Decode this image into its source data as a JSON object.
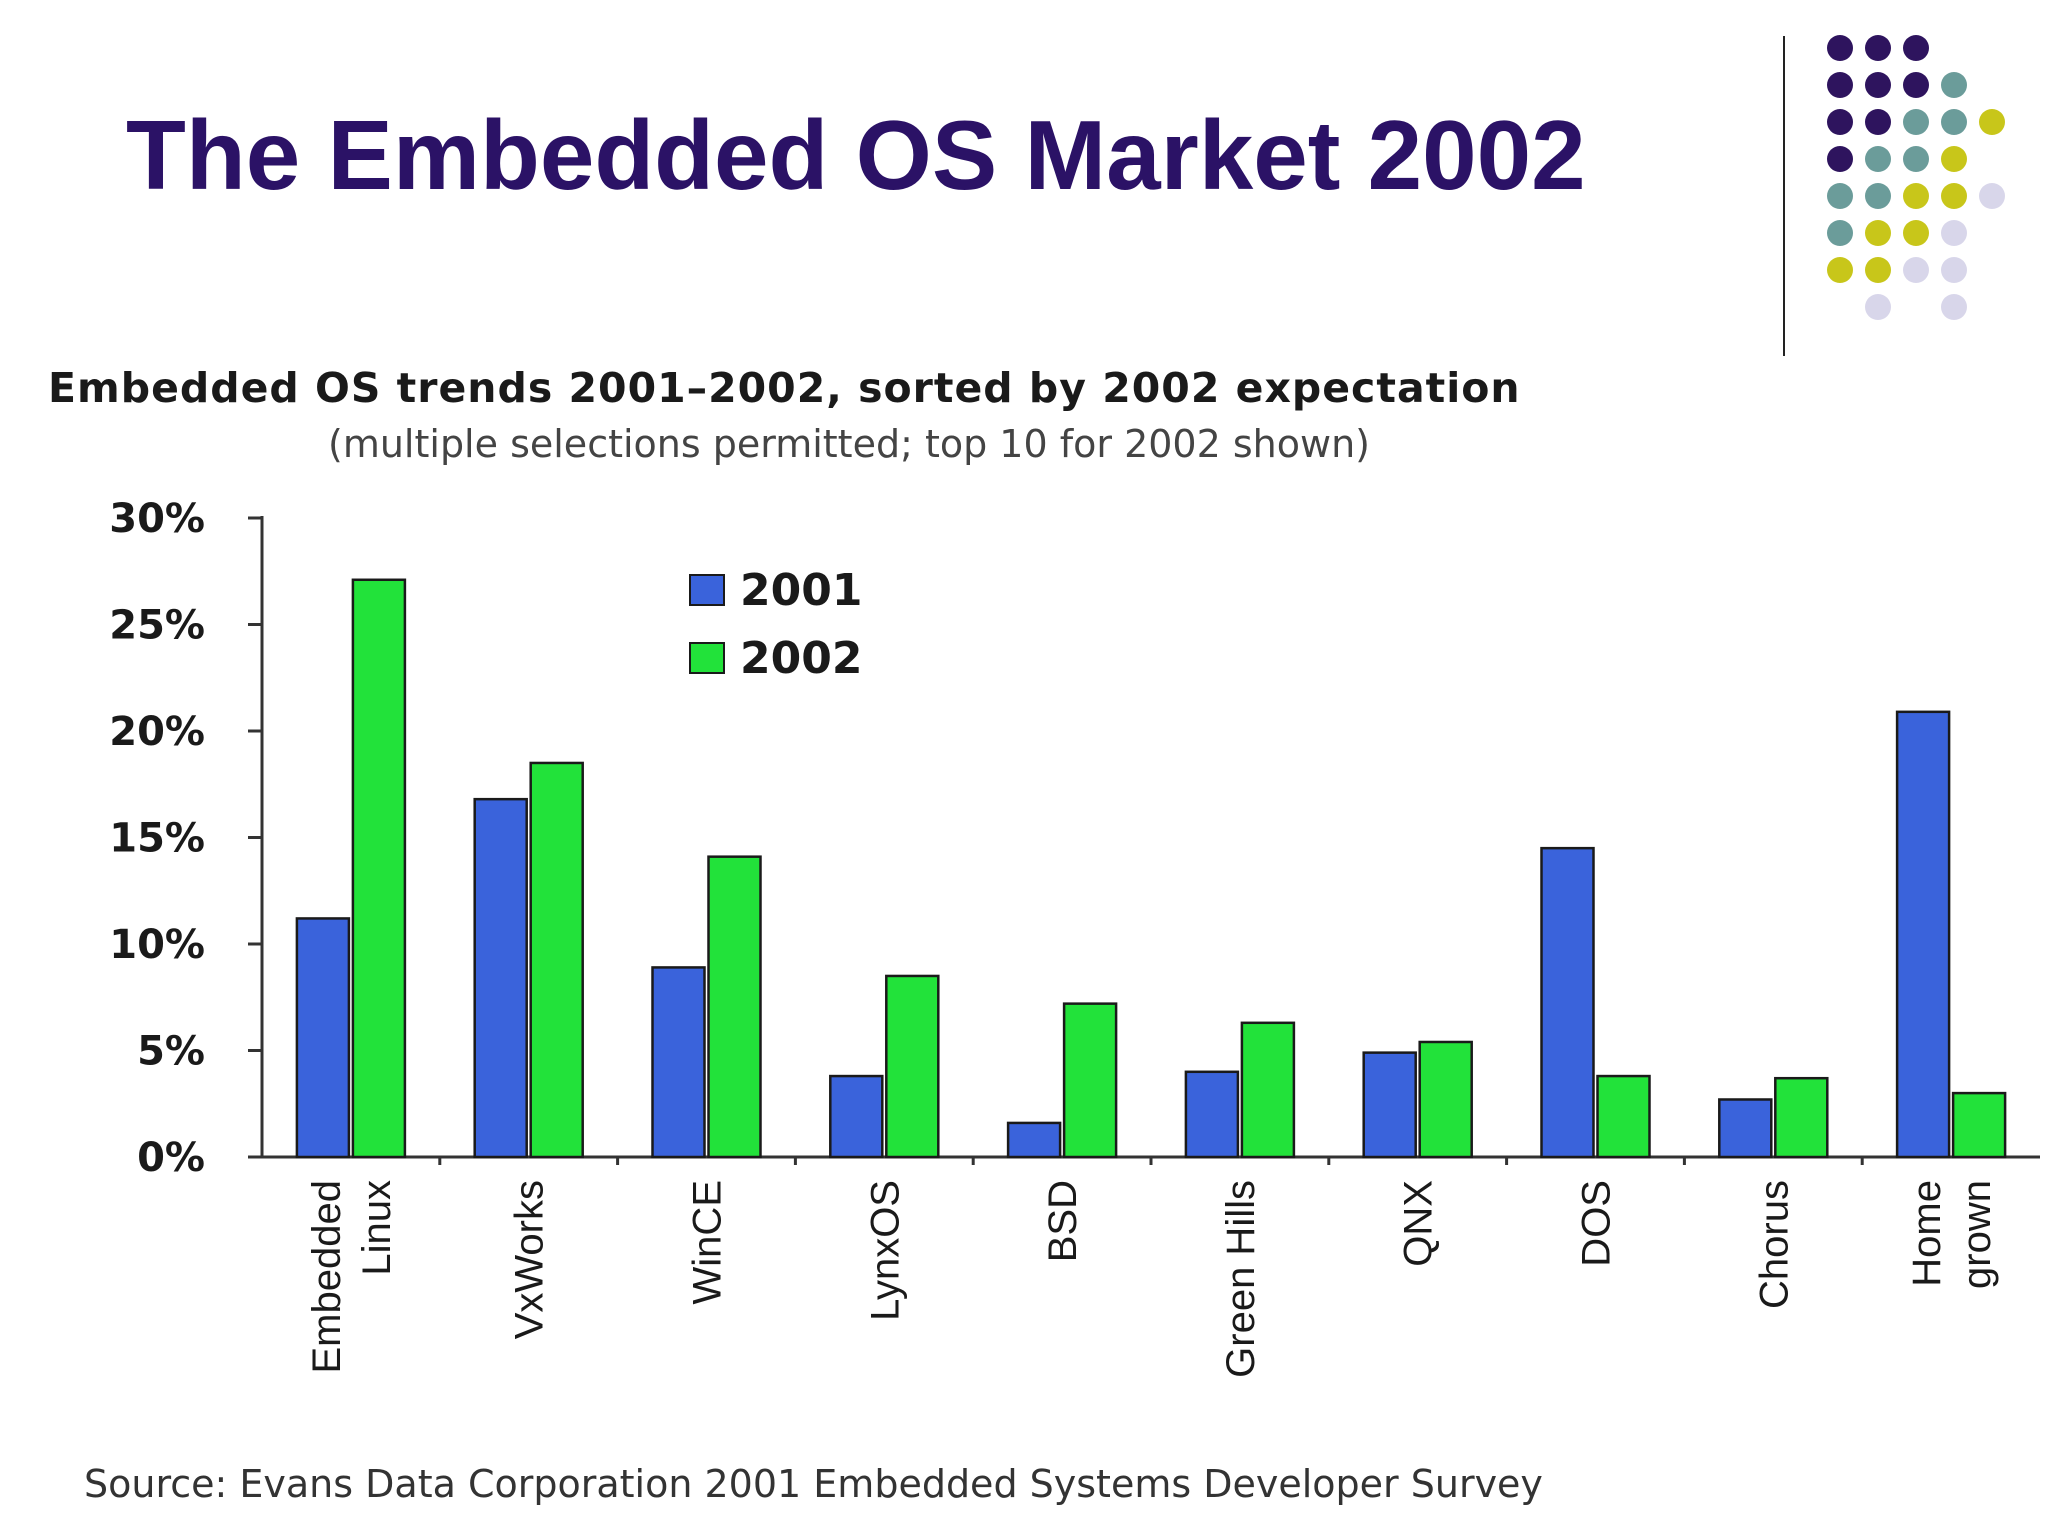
{
  "slide": {
    "title": "The Embedded OS Market 2002",
    "source": "Source:  Evans Data Corporation 2001 Embedded Systems Developer Survey"
  },
  "theme": {
    "title_color": "#2b1266",
    "dot_colors": [
      "#2e145e",
      "#6b9c9a",
      "#c8c61a",
      "#d8d6ea"
    ]
  },
  "chart_data": {
    "type": "bar",
    "title": "Embedded OS trends 2001–2002, sorted by 2002 expectation",
    "subtitle": "(multiple selections permitted; top 10 for 2002 shown)",
    "categories": [
      "Embedded Linux",
      "VxWorks",
      "WinCE",
      "LynxOS",
      "BSD",
      "Green Hills",
      "QNX",
      "DOS",
      "Chorus",
      "Home grown"
    ],
    "category_lines": [
      [
        "Embedded",
        "Linux"
      ],
      [
        "VxWorks"
      ],
      [
        "WinCE"
      ],
      [
        "LynxOS"
      ],
      [
        "BSD"
      ],
      [
        "Green Hills"
      ],
      [
        "QNX"
      ],
      [
        "DOS"
      ],
      [
        "Chorus"
      ],
      [
        "Home",
        "grown"
      ]
    ],
    "series": [
      {
        "name": "2001",
        "color": "#3a63db",
        "values": [
          11.2,
          16.8,
          8.9,
          3.8,
          1.6,
          4.0,
          4.9,
          14.5,
          2.7,
          20.9
        ]
      },
      {
        "name": "2002",
        "color": "#22e23a",
        "values": [
          27.1,
          18.5,
          14.1,
          8.5,
          7.2,
          6.3,
          5.4,
          3.8,
          3.7,
          3.0
        ]
      }
    ],
    "ylim": [
      0,
      30
    ],
    "yticks": [
      0,
      5,
      10,
      15,
      20,
      25,
      30
    ],
    "ytick_labels": [
      "0%",
      "5%",
      "10%",
      "15%",
      "20%",
      "25%",
      "30%"
    ],
    "legend_position": "top-center",
    "grid": false,
    "xlabel": "",
    "ylabel": ""
  }
}
